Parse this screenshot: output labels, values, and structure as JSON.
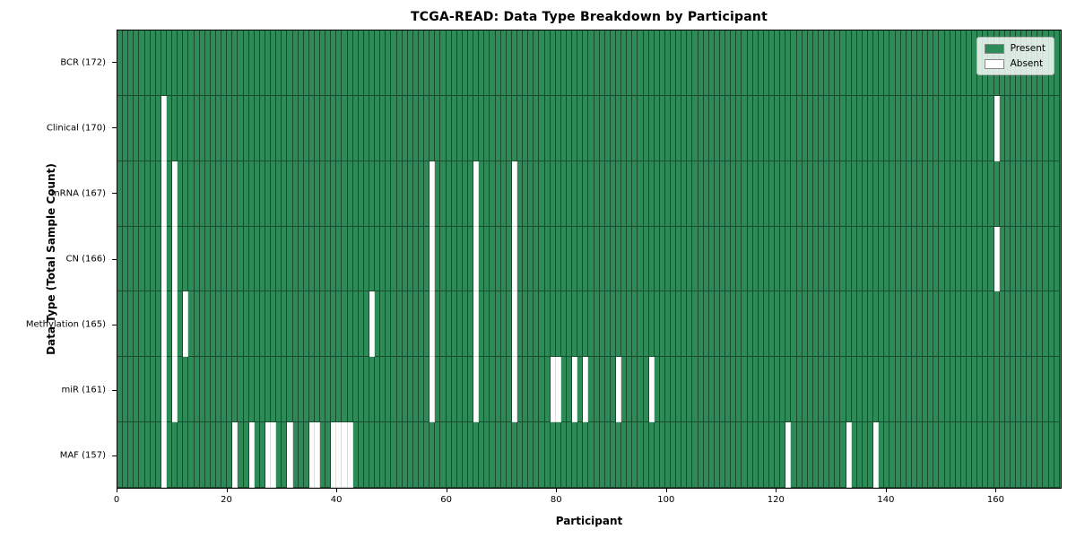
{
  "chart_data": {
    "type": "heatmap",
    "title": "TCGA-READ: Data Type Breakdown by Participant",
    "xlabel": "Participant",
    "ylabel": "Data Type (Total Sample Count)",
    "n_participants": 172,
    "x_ticks": [
      0,
      20,
      40,
      60,
      80,
      100,
      120,
      140,
      160
    ],
    "legend_position": "upper right",
    "grid": false,
    "present_color": "#2e8b57",
    "absent_color": "#ffffff",
    "legend": [
      {
        "label": "Present",
        "color": "#2e8b57"
      },
      {
        "label": "Absent",
        "color": "#ffffff"
      }
    ],
    "rows": [
      {
        "label": "BCR (172)",
        "name": "BCR",
        "count": 172,
        "absent_participants": []
      },
      {
        "label": "Clinical (170)",
        "name": "Clinical",
        "count": 170,
        "absent_participants": [
          8,
          160
        ]
      },
      {
        "label": "mRNA (167)",
        "name": "mRNA",
        "count": 167,
        "absent_participants": [
          8,
          10,
          57,
          65,
          72
        ]
      },
      {
        "label": "CN (166)",
        "name": "CN",
        "count": 166,
        "absent_participants": [
          8,
          10,
          57,
          65,
          72,
          160
        ]
      },
      {
        "label": "Methylation (165)",
        "name": "Methylation",
        "count": 165,
        "absent_participants": [
          8,
          10,
          12,
          46,
          57,
          65,
          72
        ]
      },
      {
        "label": "miR (161)",
        "name": "miR",
        "count": 161,
        "absent_participants": [
          8,
          10,
          57,
          65,
          72,
          79,
          80,
          83,
          85,
          91,
          97
        ]
      },
      {
        "label": "MAF (157)",
        "name": "MAF",
        "count": 157,
        "absent_participants": [
          8,
          21,
          24,
          27,
          28,
          31,
          35,
          36,
          39,
          40,
          41,
          42,
          122,
          133,
          138
        ]
      }
    ]
  }
}
